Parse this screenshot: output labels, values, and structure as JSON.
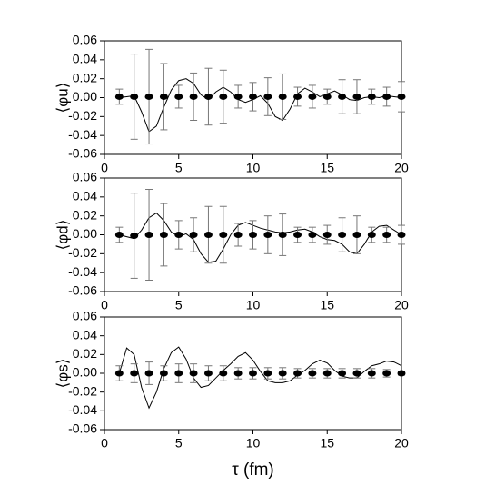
{
  "chart_data": [
    {
      "type": "errorbar",
      "ylabel": "⟨φu⟩",
      "x": [
        1,
        2,
        3,
        4,
        5,
        6,
        7,
        8,
        9,
        10,
        11,
        12,
        13,
        14,
        15,
        16,
        17,
        18,
        19,
        20
      ],
      "values": [
        0.001,
        0.001,
        0.001,
        0.001,
        0.001,
        0.001,
        0.001,
        0.001,
        0.001,
        0.001,
        0.001,
        0.001,
        0.001,
        0.001,
        0.001,
        0.001,
        0.001,
        0.001,
        0.001,
        0.001
      ],
      "errors": [
        0.008,
        0.045,
        0.05,
        0.035,
        0.012,
        0.025,
        0.03,
        0.028,
        0.012,
        0.015,
        0.02,
        0.024,
        0.01,
        0.012,
        0.008,
        0.018,
        0.018,
        0.008,
        0.01,
        0.016
      ],
      "curve": {
        "x": [
          1,
          1.5,
          2,
          2.5,
          3,
          3.5,
          4,
          4.5,
          5,
          5.5,
          6,
          6.5,
          7,
          7.5,
          8,
          8.5,
          9,
          9.5,
          10,
          10.5,
          11,
          11.5,
          12,
          12.5,
          13,
          13.5,
          14,
          14.5,
          15,
          15.5,
          16,
          16.5,
          17,
          17.5,
          18,
          18.5,
          19,
          19.5,
          20
        ],
        "values": [
          0,
          0.001,
          0.002,
          -0.015,
          -0.036,
          -0.03,
          -0.01,
          0.008,
          0.018,
          0.02,
          0.015,
          0.003,
          -0.002,
          0.006,
          0.011,
          0.006,
          -0.002,
          -0.005,
          -0.002,
          0.002,
          -0.006,
          -0.02,
          -0.024,
          -0.012,
          0.004,
          0.01,
          0.006,
          0.001,
          0.004,
          0.007,
          0.003,
          -0.002,
          -0.003,
          0,
          0.001,
          0,
          0.002,
          0.001,
          0
        ]
      },
      "xlim": [
        0,
        20
      ],
      "xticks": [
        0,
        5,
        10,
        15,
        20
      ],
      "ylim": [
        -0.06,
        0.06
      ],
      "yticks": [
        -0.06,
        -0.04,
        -0.02,
        {
          "value": 0,
          "label": "0.00"
        },
        0.02,
        0.04,
        0.06
      ],
      "color": "#000000"
    },
    {
      "type": "errorbar",
      "ylabel": "⟨φd⟩",
      "x": [
        1,
        2,
        3,
        4,
        5,
        6,
        7,
        8,
        9,
        10,
        11,
        12,
        13,
        14,
        15,
        16,
        17,
        18,
        19,
        20
      ],
      "values": [
        0,
        -0.001,
        0,
        0,
        0,
        0,
        0,
        0,
        0,
        0,
        0,
        0,
        0,
        0,
        0,
        0,
        0,
        0,
        0,
        0
      ],
      "errors": [
        0.008,
        0.045,
        0.048,
        0.033,
        0.015,
        0.018,
        0.03,
        0.03,
        0.012,
        0.015,
        0.02,
        0.022,
        0.008,
        0.008,
        0.01,
        0.018,
        0.02,
        0.008,
        0.008,
        0.01
      ],
      "curve": {
        "x": [
          1,
          1.5,
          2,
          2.5,
          3,
          3.5,
          4,
          4.5,
          5,
          5.5,
          6,
          6.5,
          7,
          7.5,
          8,
          8.5,
          9,
          9.5,
          10,
          10.5,
          11,
          11.5,
          12,
          12.5,
          13,
          13.5,
          14,
          14.5,
          15,
          15.5,
          16,
          16.5,
          17,
          17.5,
          18,
          18.5,
          19,
          19.5,
          20
        ],
        "values": [
          0,
          -0.002,
          -0.004,
          0.005,
          0.018,
          0.023,
          0.015,
          0.003,
          -0.002,
          0.001,
          -0.005,
          -0.02,
          -0.029,
          -0.028,
          -0.015,
          0,
          0.01,
          0.013,
          0.01,
          0.007,
          0.005,
          0.003,
          0.002,
          0.003,
          0.005,
          0.006,
          0.003,
          -0.002,
          -0.005,
          -0.006,
          -0.01,
          -0.018,
          -0.02,
          -0.01,
          0.003,
          0.009,
          0.01,
          0.005,
          0
        ]
      },
      "xlim": [
        0,
        20
      ],
      "xticks": [
        0,
        5,
        10,
        15,
        20
      ],
      "ylim": [
        -0.06,
        0.06
      ],
      "yticks": [
        -0.06,
        -0.04,
        -0.02,
        {
          "value": 0,
          "label": "0.00"
        },
        0.02,
        0.04,
        0.06
      ],
      "color": "#000000"
    },
    {
      "type": "errorbar",
      "ylabel": "⟨φs⟩",
      "xlabel": "τ (fm)",
      "x": [
        1,
        2,
        3,
        4,
        5,
        6,
        7,
        8,
        9,
        10,
        11,
        12,
        13,
        14,
        15,
        16,
        17,
        18,
        19,
        20
      ],
      "values": [
        0,
        0,
        0,
        0,
        0,
        0,
        0,
        0,
        0,
        0,
        0,
        0,
        0,
        0,
        0,
        0,
        0,
        0,
        0,
        0
      ],
      "errors": [
        0.008,
        0.01,
        0.012,
        0.008,
        0.01,
        0.01,
        0.008,
        0.008,
        0.006,
        0.006,
        0.006,
        0.006,
        0.005,
        0.005,
        0.005,
        0.005,
        0.005,
        0.005,
        0.004,
        0.002
      ],
      "curve": {
        "x": [
          1,
          1.5,
          2,
          2.5,
          3,
          3.5,
          4,
          4.5,
          5,
          5.5,
          6,
          6.5,
          7,
          7.5,
          8,
          8.5,
          9,
          9.5,
          10,
          10.5,
          11,
          11.5,
          12,
          12.5,
          13,
          13.5,
          14,
          14.5,
          15,
          15.5,
          16,
          16.5,
          17,
          17.5,
          18,
          18.5,
          19,
          19.5,
          20
        ],
        "values": [
          0,
          0.027,
          0.02,
          -0.015,
          -0.037,
          -0.02,
          0.005,
          0.022,
          0.028,
          0.015,
          -0.005,
          -0.015,
          -0.013,
          -0.005,
          0.003,
          0.01,
          0.018,
          0.022,
          0.014,
          0.002,
          -0.008,
          -0.01,
          -0.01,
          -0.008,
          -0.002,
          0.003,
          0.01,
          0.014,
          0.011,
          0.003,
          -0.003,
          -0.005,
          -0.005,
          0.002,
          0.008,
          0.01,
          0.013,
          0.012,
          0.008
        ]
      },
      "xlim": [
        0,
        20
      ],
      "xticks": [
        0,
        5,
        10,
        15,
        20
      ],
      "ylim": [
        -0.06,
        0.06
      ],
      "yticks": [
        -0.06,
        -0.04,
        -0.02,
        {
          "value": 0,
          "label": "0.00"
        },
        0.02,
        0.04,
        0.06
      ],
      "color": "#000000"
    }
  ]
}
